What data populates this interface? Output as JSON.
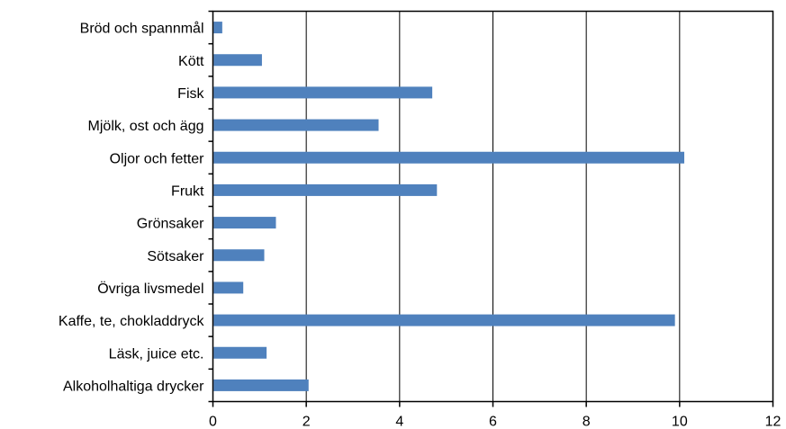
{
  "chart_data": {
    "type": "bar",
    "orientation": "horizontal",
    "title": "",
    "xlabel": "",
    "ylabel": "",
    "categories": [
      "Bröd och spannmål",
      "Kött",
      "Fisk",
      "Mjölk, ost och ägg",
      "Oljor och fetter",
      "Frukt",
      "Grönsaker",
      "Sötsaker",
      "Övriga livsmedel",
      "Kaffe, te, chokladdryck",
      "Läsk, juice etc.",
      "Alkoholhaltiga drycker"
    ],
    "values": [
      0.2,
      1.05,
      4.7,
      3.55,
      10.1,
      4.8,
      1.35,
      1.1,
      0.65,
      9.9,
      1.15,
      2.05
    ],
    "xlim": [
      0,
      12
    ],
    "xticks": [
      "0",
      "2",
      "4",
      "6",
      "8",
      "10",
      "12"
    ],
    "grid": "vertical",
    "legend": "none",
    "colors": {
      "bar": "#4f81bd",
      "grid": "#000000",
      "axis": "#000000"
    }
  }
}
